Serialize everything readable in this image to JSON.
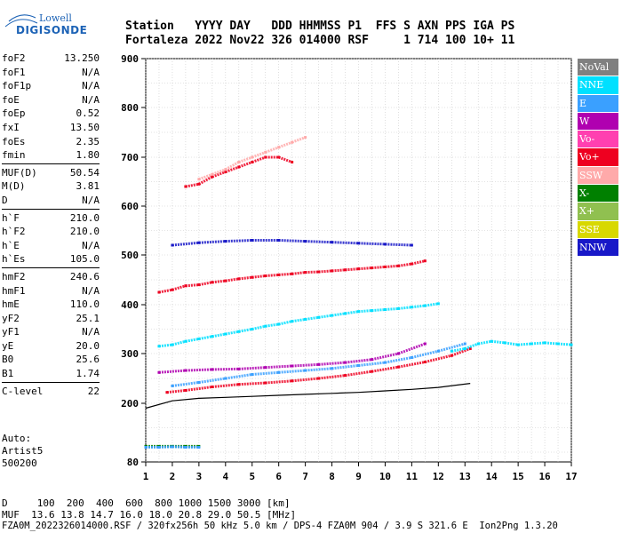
{
  "logo": {
    "line1": "Lowell",
    "line2": "DIGISONDE"
  },
  "header": {
    "line1": "Station   YYYY DAY   DDD HHMMSS P1  FFS S AXN PPS IGA PS",
    "line2": "Fortaleza 2022 Nov22 326 014000 RSF     1 714 100 10+ 11"
  },
  "params": [
    {
      "group": [
        {
          "key": "foF2",
          "value": "13.250"
        },
        {
          "key": "foF1",
          "value": "N/A"
        },
        {
          "key": "foF1p",
          "value": "N/A"
        },
        {
          "key": "foE",
          "value": "N/A"
        },
        {
          "key": "foEp",
          "value": "0.52"
        },
        {
          "key": "fxI",
          "value": "13.50"
        },
        {
          "key": "foEs",
          "value": "2.35"
        },
        {
          "key": "fmin",
          "value": "1.80"
        }
      ]
    },
    {
      "group": [
        {
          "key": "MUF(D)",
          "value": "50.54"
        },
        {
          "key": "M(D)",
          "value": "3.81"
        },
        {
          "key": "D",
          "value": "N/A"
        }
      ]
    },
    {
      "group": [
        {
          "key": "h`F",
          "value": "210.0"
        },
        {
          "key": "h`F2",
          "value": "210.0"
        },
        {
          "key": "h`E",
          "value": "N/A"
        },
        {
          "key": "h`Es",
          "value": "105.0"
        }
      ]
    },
    {
      "group": [
        {
          "key": "hmF2",
          "value": "240.6"
        },
        {
          "key": "hmF1",
          "value": "N/A"
        },
        {
          "key": "hmE",
          "value": "110.0"
        },
        {
          "key": "yF2",
          "value": "25.1"
        },
        {
          "key": "yF1",
          "value": "N/A"
        },
        {
          "key": "yE",
          "value": "20.0"
        },
        {
          "key": "B0",
          "value": "25.6"
        },
        {
          "key": "B1",
          "value": "1.74"
        }
      ]
    },
    {
      "group": [
        {
          "key": "C-level",
          "value": "22"
        }
      ]
    }
  ],
  "auto": {
    "line1": "Auto:",
    "line2": "Artist5",
    "line3": "500200"
  },
  "legend": [
    {
      "label": "NoVal",
      "color": "#808080"
    },
    {
      "label": "NNE",
      "color": "#00e0ff"
    },
    {
      "label": "E",
      "color": "#3aa0ff"
    },
    {
      "label": "W",
      "color": "#b000b0"
    },
    {
      "label": "Vo-",
      "color": "#ff40b0"
    },
    {
      "label": "Vo+",
      "color": "#ee0020"
    },
    {
      "label": "SSW",
      "color": "#ffaaaa"
    },
    {
      "label": "X-",
      "color": "#008000"
    },
    {
      "label": "X+",
      "color": "#90c050"
    },
    {
      "label": "SSE",
      "color": "#d8d800"
    },
    {
      "label": "NNW",
      "color": "#1818c8"
    }
  ],
  "chart_data": {
    "type": "scatter",
    "title": "",
    "xlabel": "",
    "ylabel": "",
    "xlim": [
      1,
      17
    ],
    "ylim": [
      80,
      900
    ],
    "xticks": [
      "1",
      "2",
      "3",
      "4",
      "5",
      "6",
      "7",
      "8",
      "9",
      "10",
      "11",
      "12",
      "13",
      "14",
      "15",
      "16",
      "17"
    ],
    "yticks": [
      "80",
      "200",
      "300",
      "400",
      "500",
      "600",
      "700",
      "800",
      "900"
    ],
    "grid": true,
    "series": [
      {
        "color": "#ee0020",
        "x": [
          1.8,
          2.5,
          3.5,
          4.5,
          5.5,
          6.5,
          7.5,
          8.5,
          9.5,
          10.5,
          11.5,
          12.5,
          13.2
        ],
        "y": [
          222,
          226,
          233,
          238,
          241,
          245,
          250,
          256,
          264,
          273,
          283,
          296,
          310
        ]
      },
      {
        "color": "#3aa0ff",
        "x": [
          2,
          3,
          4,
          5,
          6,
          7,
          8,
          9,
          10,
          11,
          12,
          13
        ],
        "y": [
          235,
          242,
          250,
          258,
          262,
          266,
          270,
          276,
          282,
          292,
          305,
          320
        ]
      },
      {
        "color": "#b000b0",
        "x": [
          1.5,
          2.5,
          3.5,
          4.5,
          5.5,
          6.5,
          7.5,
          8.5,
          9.5,
          10.5,
          11.5
        ],
        "y": [
          262,
          266,
          268,
          269,
          272,
          275,
          278,
          282,
          288,
          300,
          320
        ]
      },
      {
        "color": "#00e0ff",
        "x": [
          1.5,
          2,
          2.5,
          3,
          3.5,
          4,
          4.5,
          5,
          5.5,
          6,
          6.5,
          7,
          7.5,
          8,
          8.5,
          9,
          9.5,
          10,
          10.5,
          11,
          11.5,
          12
        ],
        "y": [
          315,
          318,
          325,
          330,
          335,
          340,
          345,
          350,
          356,
          360,
          366,
          370,
          374,
          378,
          382,
          386,
          388,
          390,
          392,
          395,
          398,
          402
        ]
      },
      {
        "color": "#ee0020",
        "x": [
          1.5,
          2,
          2.5,
          3,
          3.5,
          4,
          4.5,
          5,
          5.5,
          6,
          6.5,
          7,
          7.5,
          8,
          8.5,
          9,
          9.5,
          10,
          10.5,
          11,
          11.5
        ],
        "y": [
          425,
          430,
          438,
          440,
          445,
          448,
          452,
          455,
          458,
          460,
          462,
          465,
          466,
          468,
          470,
          472,
          474,
          476,
          478,
          482,
          488
        ]
      },
      {
        "color": "#1818c8",
        "x": [
          2,
          3,
          4,
          5,
          6,
          7,
          8,
          9,
          10,
          11
        ],
        "y": [
          520,
          525,
          528,
          530,
          530,
          528,
          526,
          524,
          522,
          520
        ]
      },
      {
        "color": "#ee0020",
        "x": [
          2.5,
          3,
          3.5,
          4,
          4.5,
          5,
          5.5,
          6,
          6.5
        ],
        "y": [
          640,
          645,
          660,
          670,
          680,
          690,
          700,
          700,
          690
        ]
      },
      {
        "color": "#ffaaaa",
        "x": [
          3,
          3.5,
          4,
          4.5,
          5,
          5.5,
          6,
          6.5,
          7
        ],
        "y": [
          655,
          665,
          675,
          690,
          700,
          710,
          720,
          730,
          740
        ]
      },
      {
        "color": "#00e0ff",
        "x": [
          12.5,
          13,
          13.5,
          14,
          14.5,
          15,
          15.5,
          16,
          16.5,
          17
        ],
        "y": [
          305,
          310,
          320,
          325,
          322,
          318,
          320,
          322,
          320,
          318
        ]
      },
      {
        "color": "#008000",
        "x": [
          1,
          1.5,
          2,
          2.5,
          3
        ],
        "y": [
          112,
          112,
          112,
          112,
          112
        ]
      },
      {
        "color": "#3aa0ff",
        "x": [
          1,
          1.5,
          2,
          2.5,
          3
        ],
        "y": [
          110,
          110,
          111,
          110,
          110
        ]
      }
    ],
    "profile": {
      "color": "#000000",
      "x": [
        1,
        2,
        3,
        4,
        5,
        6,
        7,
        8,
        9,
        10,
        11,
        12,
        13.2
      ],
      "y": [
        190,
        205,
        210,
        212,
        214,
        216,
        218,
        220,
        222,
        225,
        228,
        232,
        240
      ]
    }
  },
  "bottom": {
    "line1": "D     100  200  400  600  800 1000 1500 3000 [km]",
    "line2": "MUF  13.6 13.8 14.7 16.0 18.0 20.8 29.0 50.5 [MHz]",
    "line3": "FZA0M_2022326014000.RSF / 320fx256h 50 kHz 5.0 km / DPS-4 FZA0M 904 / 3.9 S 321.6 E  Ion2Png 1.3.20"
  }
}
